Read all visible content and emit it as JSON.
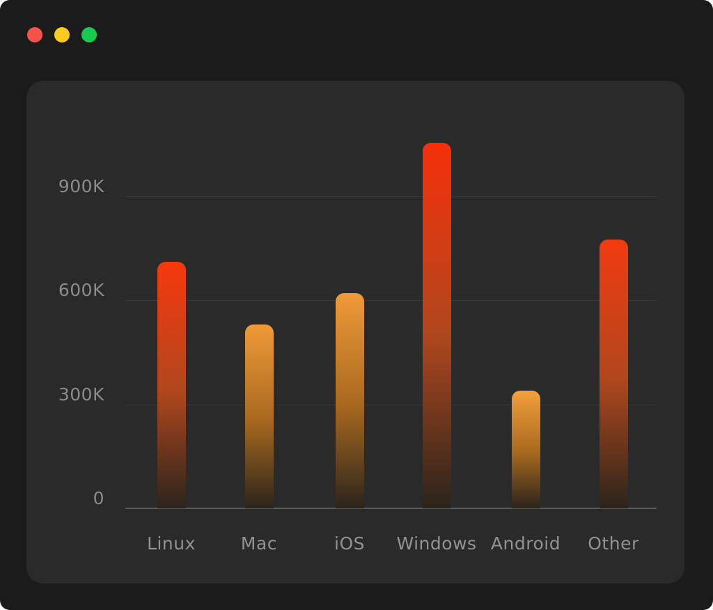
{
  "window": {
    "controls": [
      {
        "name": "close",
        "color": "#f4524b"
      },
      {
        "name": "minimize",
        "color": "#fbcb1f"
      },
      {
        "name": "zoom",
        "color": "#19c950"
      }
    ]
  },
  "chart_data": {
    "type": "bar",
    "title": "",
    "categories": [
      "Linux",
      "Mac",
      "iOS",
      "Windows",
      "Android",
      "Other"
    ],
    "values": [
      710,
      530,
      620,
      1055,
      340,
      775
    ],
    "unit": "K",
    "xlabel": "",
    "ylabel": "",
    "ylim": [
      0,
      1100
    ],
    "grid": true,
    "legend": false,
    "y_ticks": [
      {
        "label": "0",
        "value": 0
      },
      {
        "label": "300K",
        "value": 300
      },
      {
        "label": "600K",
        "value": 600
      },
      {
        "label": "900K",
        "value": 900
      }
    ],
    "bar_colors": [
      {
        "top": "#f8380d",
        "mid": "#b1471d"
      },
      {
        "top": "#f09a38",
        "mid": "#a8691f"
      },
      {
        "top": "#f09a38",
        "mid": "#a8691f"
      },
      {
        "top": "#f5300a",
        "mid": "#b1471d"
      },
      {
        "top": "#f5a03c",
        "mid": "#a8691f"
      },
      {
        "top": "#f23b10",
        "mid": "#b1471d"
      }
    ],
    "gradient_bottom": "#2b241c",
    "colors": {
      "page_bg": "#1b1b1c",
      "panel_bg": "#2a2a2b",
      "gridline": "#3a3a3c",
      "axis_line": "#5d5b58",
      "tick_text": "#8b8b8b",
      "category_text": "#929292"
    }
  }
}
